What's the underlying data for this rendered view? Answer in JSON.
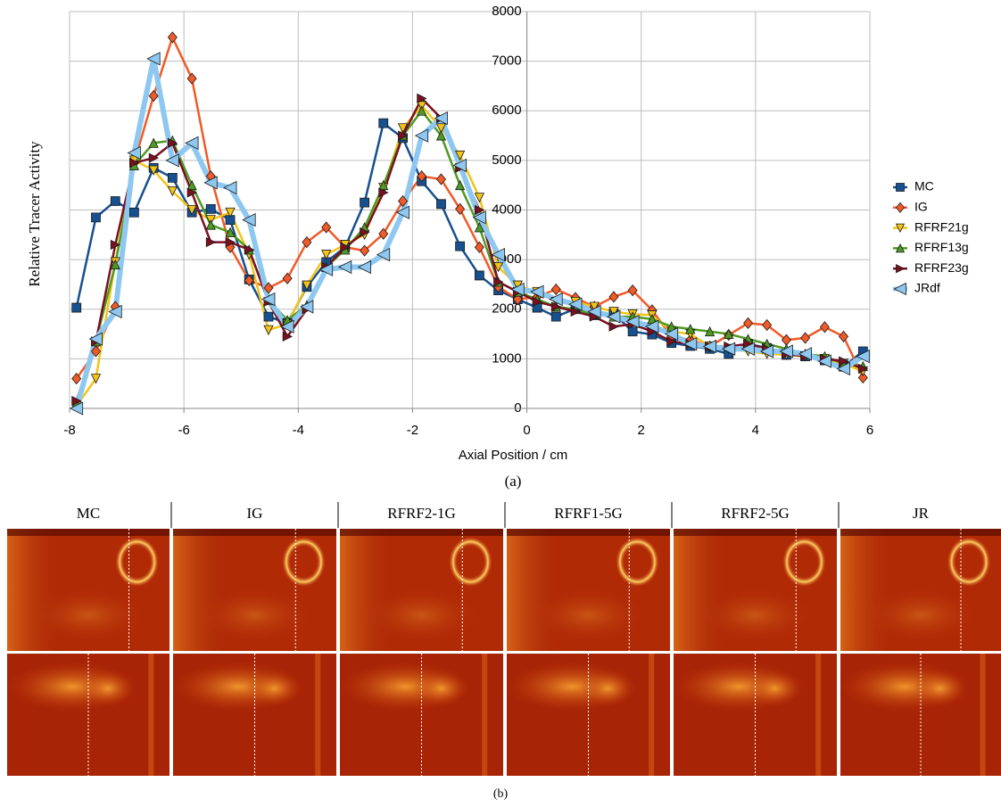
{
  "chart_data": {
    "type": "line",
    "x_label": "Axial Position / cm",
    "y_label": "Relative Tracer Activity",
    "x": [
      -7.88,
      -7.54,
      -7.2,
      -6.87,
      -6.53,
      -6.2,
      -5.86,
      -5.53,
      -5.19,
      -4.86,
      -4.52,
      -4.19,
      -3.85,
      -3.51,
      -3.18,
      -2.84,
      -2.51,
      -2.17,
      -1.84,
      -1.5,
      -1.17,
      -0.83,
      -0.5,
      -0.16,
      0.18,
      0.51,
      0.85,
      1.18,
      1.52,
      1.85,
      2.19,
      2.53,
      2.86,
      3.2,
      3.53,
      3.87,
      4.2,
      4.54,
      4.87,
      5.21,
      5.54,
      5.88
    ],
    "series": [
      {
        "name": "MC",
        "color": "#17508f",
        "marker": "square",
        "line_width": 2.5,
        "values": [
          2030,
          3850,
          4180,
          3950,
          4850,
          4650,
          3950,
          4020,
          3800,
          2600,
          1850,
          1720,
          2450,
          2950,
          3250,
          4150,
          5750,
          5450,
          4580,
          4120,
          3270,
          2680,
          2380,
          2200,
          2030,
          1850,
          2010,
          1880,
          1910,
          1550,
          1490,
          1320,
          1260,
          1200,
          1100,
          1300,
          1220,
          1080,
          1050,
          970,
          840,
          1150
        ]
      },
      {
        "name": "IG",
        "color": "#f05a28",
        "marker": "diamond",
        "line_width": 2.5,
        "values": [
          600,
          1150,
          2050,
          4950,
          6300,
          7480,
          6650,
          4680,
          3250,
          2580,
          2430,
          2620,
          3350,
          3650,
          3250,
          3180,
          3520,
          4180,
          4680,
          4620,
          4020,
          3250,
          2450,
          2200,
          2250,
          2400,
          2230,
          2050,
          2250,
          2380,
          1980,
          1450,
          1380,
          1250,
          1480,
          1720,
          1680,
          1380,
          1420,
          1640,
          1450,
          620
        ]
      },
      {
        "name": "RFRF21g",
        "color": "#f2c419",
        "marker": "triangle-down",
        "line_width": 2.5,
        "values": [
          50,
          600,
          2950,
          5000,
          4800,
          4380,
          4000,
          3800,
          3950,
          3100,
          1580,
          1700,
          2480,
          3100,
          3300,
          3500,
          4450,
          5650,
          6100,
          5650,
          5100,
          4250,
          2850,
          2480,
          2350,
          2150,
          2150,
          2050,
          1950,
          1900,
          1880,
          1550,
          1500,
          1250,
          1200,
          1150,
          1100,
          1080,
          1050,
          1000,
          900,
          750
        ]
      },
      {
        "name": "RFRF13g",
        "color": "#4f9a23",
        "marker": "triangle-up",
        "line_width": 2.5,
        "values": [
          100,
          1350,
          2900,
          4900,
          5350,
          5400,
          4500,
          3700,
          3550,
          3200,
          2180,
          1780,
          2080,
          2850,
          3200,
          3650,
          4500,
          5500,
          6000,
          5500,
          4500,
          3650,
          2550,
          2350,
          2200,
          2050,
          2000,
          1900,
          1850,
          1850,
          1800,
          1650,
          1600,
          1550,
          1500,
          1400,
          1300,
          1200,
          1100,
          1050,
          900,
          850
        ]
      },
      {
        "name": "RFRF23g",
        "color": "#7a1020",
        "marker": "triangle-right",
        "line_width": 2.5,
        "values": [
          150,
          1350,
          3300,
          4950,
          5050,
          5350,
          4350,
          3350,
          3350,
          3200,
          2150,
          1450,
          2000,
          2850,
          3250,
          3550,
          4350,
          5500,
          6250,
          5850,
          4850,
          4000,
          2550,
          2350,
          2150,
          2050,
          1950,
          1850,
          1650,
          1700,
          1550,
          1350,
          1300,
          1250,
          1250,
          1300,
          1200,
          1100,
          1050,
          1000,
          950,
          800
        ]
      },
      {
        "name": "JRdf",
        "color": "#8ec8f0",
        "marker": "triangle-left",
        "line_width": 6,
        "values": [
          0,
          1400,
          1950,
          5150,
          7050,
          5000,
          5350,
          4550,
          4450,
          3800,
          2200,
          1650,
          2050,
          2800,
          2850,
          2850,
          3100,
          3950,
          5500,
          5850,
          4900,
          3850,
          3100,
          2400,
          2350,
          2200,
          2100,
          1950,
          1850,
          1750,
          1650,
          1500,
          1300,
          1250,
          1200,
          1200,
          1150,
          1150,
          1100,
          950,
          800,
          1050
        ]
      }
    ],
    "xlim": [
      -8,
      6
    ],
    "xticks": [
      -8,
      -6,
      -4,
      -2,
      0,
      2,
      4,
      6
    ],
    "ylim": [
      0,
      8000
    ],
    "yticks": [
      0,
      1000,
      2000,
      3000,
      4000,
      5000,
      6000,
      7000,
      8000
    ],
    "grid": true,
    "legend": "right"
  },
  "figure": {
    "caption_a": "(a)",
    "caption_b": "(b)",
    "panel_labels": [
      "MC",
      "IG",
      "RFRF2-1G",
      "RFRF1-5G",
      "RFRF2-5G",
      "JR"
    ]
  }
}
